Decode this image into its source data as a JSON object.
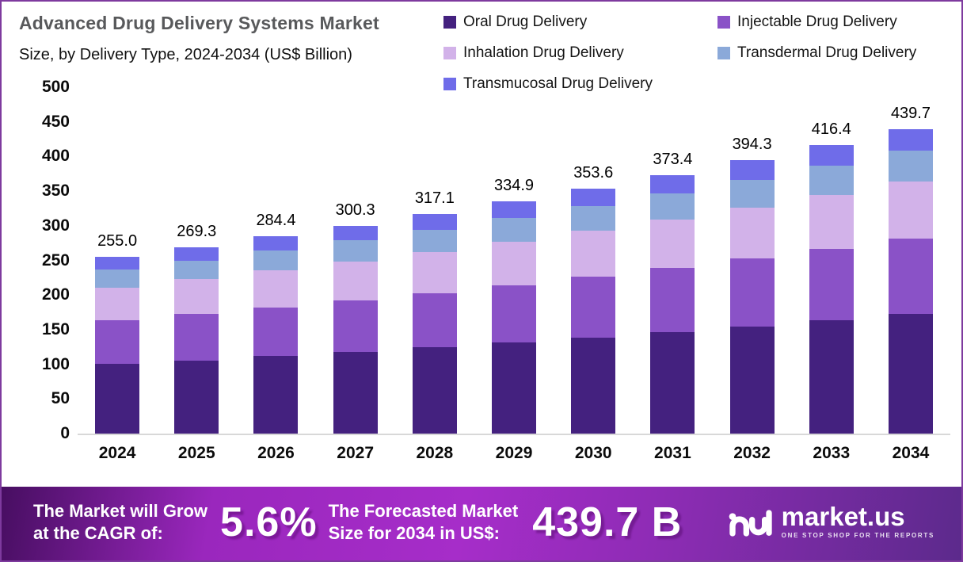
{
  "title": "Advanced Drug Delivery Systems Market",
  "subtitle": "Size, by Delivery Type, 2024-2034 (US$ Billion)",
  "colors": {
    "frame_border": "#7e3a9e",
    "title_gray": "#58595b",
    "axis_text": "#0b0b0b",
    "baseline": "#d8d8d8",
    "banner_text": "#ffffff",
    "banner_gradient": [
      "#470e61",
      "#9a27bd",
      "#a62dc9",
      "#8e2cb5",
      "#5c2a8c"
    ]
  },
  "chart_data": {
    "type": "bar",
    "stacked": true,
    "title": "Advanced Drug Delivery Systems Market",
    "subtitle": "Size, by Delivery Type, 2024-2034 (US$ Billion)",
    "unit": "US$ Billion",
    "categories": [
      "2024",
      "2025",
      "2026",
      "2027",
      "2028",
      "2029",
      "2030",
      "2031",
      "2032",
      "2033",
      "2034"
    ],
    "totals": [
      255.0,
      269.3,
      284.4,
      300.3,
      317.1,
      334.9,
      353.6,
      373.4,
      394.3,
      416.4,
      439.7
    ],
    "total_labels": [
      "255.0",
      "269.3",
      "284.4",
      "300.3",
      "317.1",
      "334.9",
      "353.6",
      "373.4",
      "394.3",
      "416.4",
      "439.7"
    ],
    "series": [
      {
        "name": "Oral Drug Delivery",
        "color": "#44217f",
        "values": [
          100.2,
          105.8,
          111.8,
          118.0,
          124.6,
          131.6,
          139.0,
          146.7,
          155.0,
          163.6,
          172.8
        ]
      },
      {
        "name": "Injectable Drug Delivery",
        "color": "#8a52c7",
        "values": [
          63.0,
          66.5,
          70.2,
          74.2,
          78.3,
          82.7,
          87.3,
          92.2,
          97.4,
          102.9,
          108.6
        ]
      },
      {
        "name": "Inhalation Drug Delivery",
        "color": "#d2b2e9",
        "values": [
          47.7,
          50.4,
          53.2,
          56.2,
          59.3,
          62.6,
          66.1,
          69.8,
          73.7,
          77.9,
          82.2
        ]
      },
      {
        "name": "Transdermal Drug Delivery",
        "color": "#8ba9d9",
        "values": [
          25.8,
          27.2,
          28.7,
          30.3,
          32.0,
          33.8,
          35.7,
          37.7,
          39.8,
          42.1,
          44.4
        ]
      },
      {
        "name": "Transmucosal Drug Delivery",
        "color": "#6f6ce9",
        "values": [
          18.3,
          19.4,
          20.5,
          21.6,
          22.9,
          24.2,
          25.5,
          27.0,
          28.4,
          29.9,
          31.7
        ]
      }
    ],
    "ylim": [
      0,
      500
    ],
    "yticks": [
      0,
      50,
      100,
      150,
      200,
      250,
      300,
      350,
      400,
      450,
      500
    ],
    "grid": false,
    "legend_position": "top-right"
  },
  "banner": {
    "cagr_text_line1": "The Market will Grow",
    "cagr_text_line2": "at the CAGR of:",
    "cagr_value": "5.6%",
    "forecast_text_line1": "The Forecasted Market",
    "forecast_text_line2": "Size for 2034 in US$:",
    "forecast_value": "439.7 B",
    "logo_text": "market.us",
    "logo_tagline": "ONE STOP SHOP FOR THE REPORTS"
  }
}
